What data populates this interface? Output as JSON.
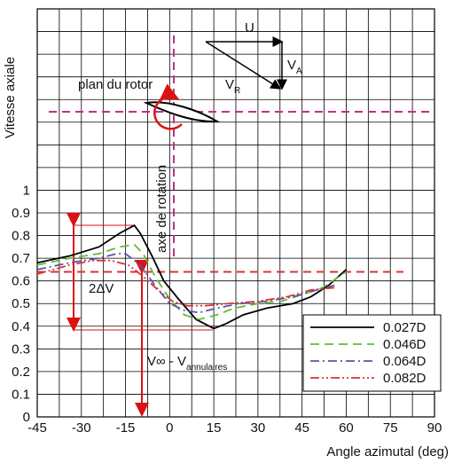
{
  "chart_data": {
    "type": "line",
    "x_label": "Angle azimutal (deg)",
    "y_label": "Vitesse axiale",
    "xlim": [
      -45,
      90
    ],
    "xticks": [
      -45,
      -30,
      -15,
      0,
      15,
      30,
      45,
      60,
      75,
      90
    ],
    "ylim": [
      0,
      1.8
    ],
    "yticks": [
      0,
      0.1,
      0.2,
      0.3,
      0.4,
      0.5,
      0.6,
      0.7,
      0.8,
      0.9,
      1
    ],
    "grid": true,
    "legend": "lower right",
    "series": [
      {
        "name": "0.027D",
        "color": "#000000",
        "dash": "solid",
        "x": [
          -45,
          -34,
          -24,
          -17,
          -12,
          -10,
          -6,
          -2,
          3,
          9,
          15,
          19,
          25,
          33,
          42,
          48,
          54,
          60
        ],
        "values": [
          0.68,
          0.71,
          0.75,
          0.81,
          0.845,
          0.81,
          0.71,
          0.6,
          0.52,
          0.43,
          0.39,
          0.41,
          0.45,
          0.48,
          0.5,
          0.53,
          0.58,
          0.65
        ]
      },
      {
        "name": "0.046D",
        "color": "#66bb33",
        "dash": "dashed",
        "x": [
          -45,
          -34,
          -24,
          -17,
          -12,
          -9,
          -5,
          0,
          5,
          10,
          16,
          22,
          30,
          38,
          45,
          52,
          60
        ],
        "values": [
          0.67,
          0.7,
          0.72,
          0.75,
          0.76,
          0.72,
          0.62,
          0.52,
          0.45,
          0.43,
          0.45,
          0.48,
          0.5,
          0.51,
          0.54,
          0.57,
          0.64
        ]
      },
      {
        "name": "0.064D",
        "color": "#5555aa",
        "dash": "dashdot",
        "x": [
          -45,
          -34,
          -24,
          -18,
          -15,
          -10,
          -5,
          0,
          5,
          10,
          16,
          24,
          33,
          42,
          50,
          56
        ],
        "values": [
          0.65,
          0.68,
          0.7,
          0.72,
          0.72,
          0.67,
          0.58,
          0.5,
          0.47,
          0.46,
          0.48,
          0.5,
          0.51,
          0.53,
          0.56,
          0.58
        ]
      },
      {
        "name": "0.082D",
        "color": "#dd3333",
        "dash": "dashdotdot",
        "x": [
          -45,
          -34,
          -26,
          -20,
          -14,
          -9,
          -4,
          1,
          6,
          12,
          20,
          30,
          40,
          48,
          56
        ],
        "values": [
          0.63,
          0.67,
          0.69,
          0.69,
          0.67,
          0.62,
          0.56,
          0.51,
          0.49,
          0.49,
          0.5,
          0.51,
          0.53,
          0.56,
          0.57
        ]
      }
    ],
    "reference_line": {
      "value": 0.64,
      "color": "#dd3333"
    },
    "annotations": {
      "delta": "2ΔV",
      "vinf_main": "V∞ - V",
      "vinf_sub": "annulaires",
      "rotor_plane": "plan du rotor",
      "rotation_axis": "axe de rotation",
      "u": "U",
      "va_main": "V",
      "va_sub": "A",
      "vr_main": "V",
      "vr_sub": "R"
    }
  }
}
